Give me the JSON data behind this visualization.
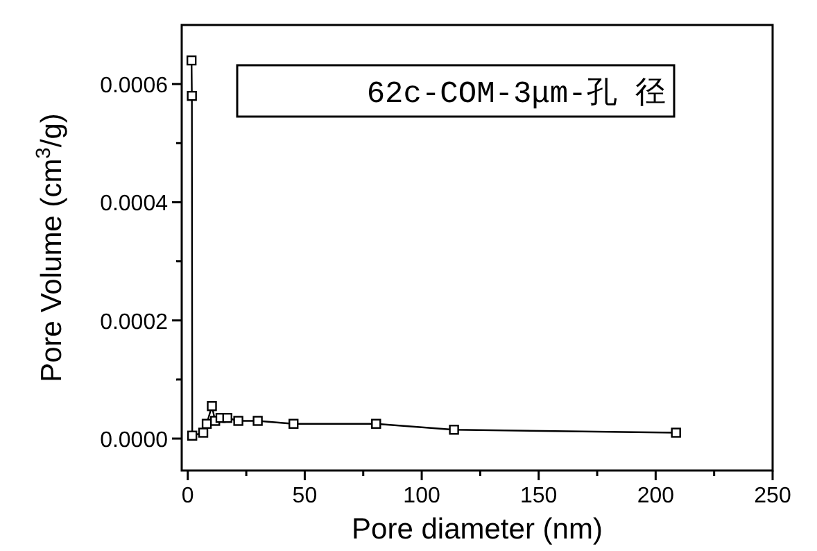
{
  "chart_data": {
    "type": "line",
    "xlabel": "Pore diameter (nm)",
    "ylabel": "Pore Volume (cm$^{3}$/g)",
    "x": [
      1.6,
      1.75,
      1.9,
      6.6,
      8.1,
      10.3,
      11.7,
      14.0,
      16.9,
      21.6,
      29.9,
      45.2,
      80.5,
      113.8,
      208.7
    ],
    "series": [
      {
        "name": "62c-COM-3μm-孔 径",
        "color": "#000000",
        "values": [
          0.00064,
          0.00058,
          5e-06,
          1e-05,
          2.5e-05,
          5.5e-05,
          3e-05,
          3.5e-05,
          3.5e-05,
          3e-05,
          3e-05,
          2.5e-05,
          2.5e-05,
          1.5e-05,
          1e-05
        ]
      }
    ],
    "xlim": [
      -2.6,
      250
    ],
    "ylim": [
      -5.4e-05,
      0.0007
    ],
    "xticks": [
      0,
      {
        "value": 25,
        "label": null
      },
      50,
      {
        "value": 75,
        "label": null
      },
      100,
      {
        "value": 125,
        "label": null
      },
      150,
      {
        "value": 175,
        "label": null
      },
      200,
      {
        "value": 225,
        "label": null
      },
      250
    ],
    "yticks": [
      {
        "value": 0,
        "label": "0.0000"
      },
      {
        "value": 0.0001,
        "label": null
      },
      {
        "value": 0.0002,
        "label": "0.0002"
      },
      {
        "value": 0.0003,
        "label": null
      },
      {
        "value": 0.0004,
        "label": "0.0004"
      },
      {
        "value": 0.0005,
        "label": null
      },
      {
        "value": 0.0006,
        "label": "0.0006"
      }
    ],
    "marker": "square",
    "legend": "top right",
    "grid": false
  }
}
